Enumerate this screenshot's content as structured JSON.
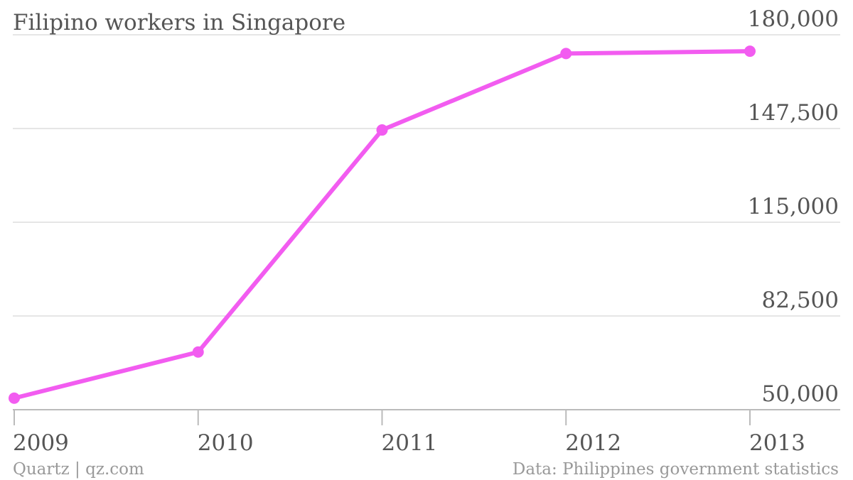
{
  "chart_data": {
    "type": "line",
    "title": "Filipino workers in Singapore",
    "xlabel": "",
    "ylabel": "",
    "x": [
      "2009",
      "2010",
      "2011",
      "2012",
      "2013"
    ],
    "series": [
      {
        "values": [
          54000,
          70000,
          147000,
          173500,
          174300
        ]
      }
    ],
    "y_ticks": [
      "50,000",
      "82,500",
      "115,000",
      "147,500",
      "180,000"
    ],
    "y_tick_values": [
      50000,
      82500,
      115000,
      147500,
      180000
    ],
    "ylim": [
      50000,
      180000
    ],
    "grid": true,
    "y_axis_side": "right",
    "line_color": "#f25cf0"
  },
  "footer": {
    "source_left": "Quartz | qz.com",
    "source_right": "Data: Philippines government statistics"
  }
}
